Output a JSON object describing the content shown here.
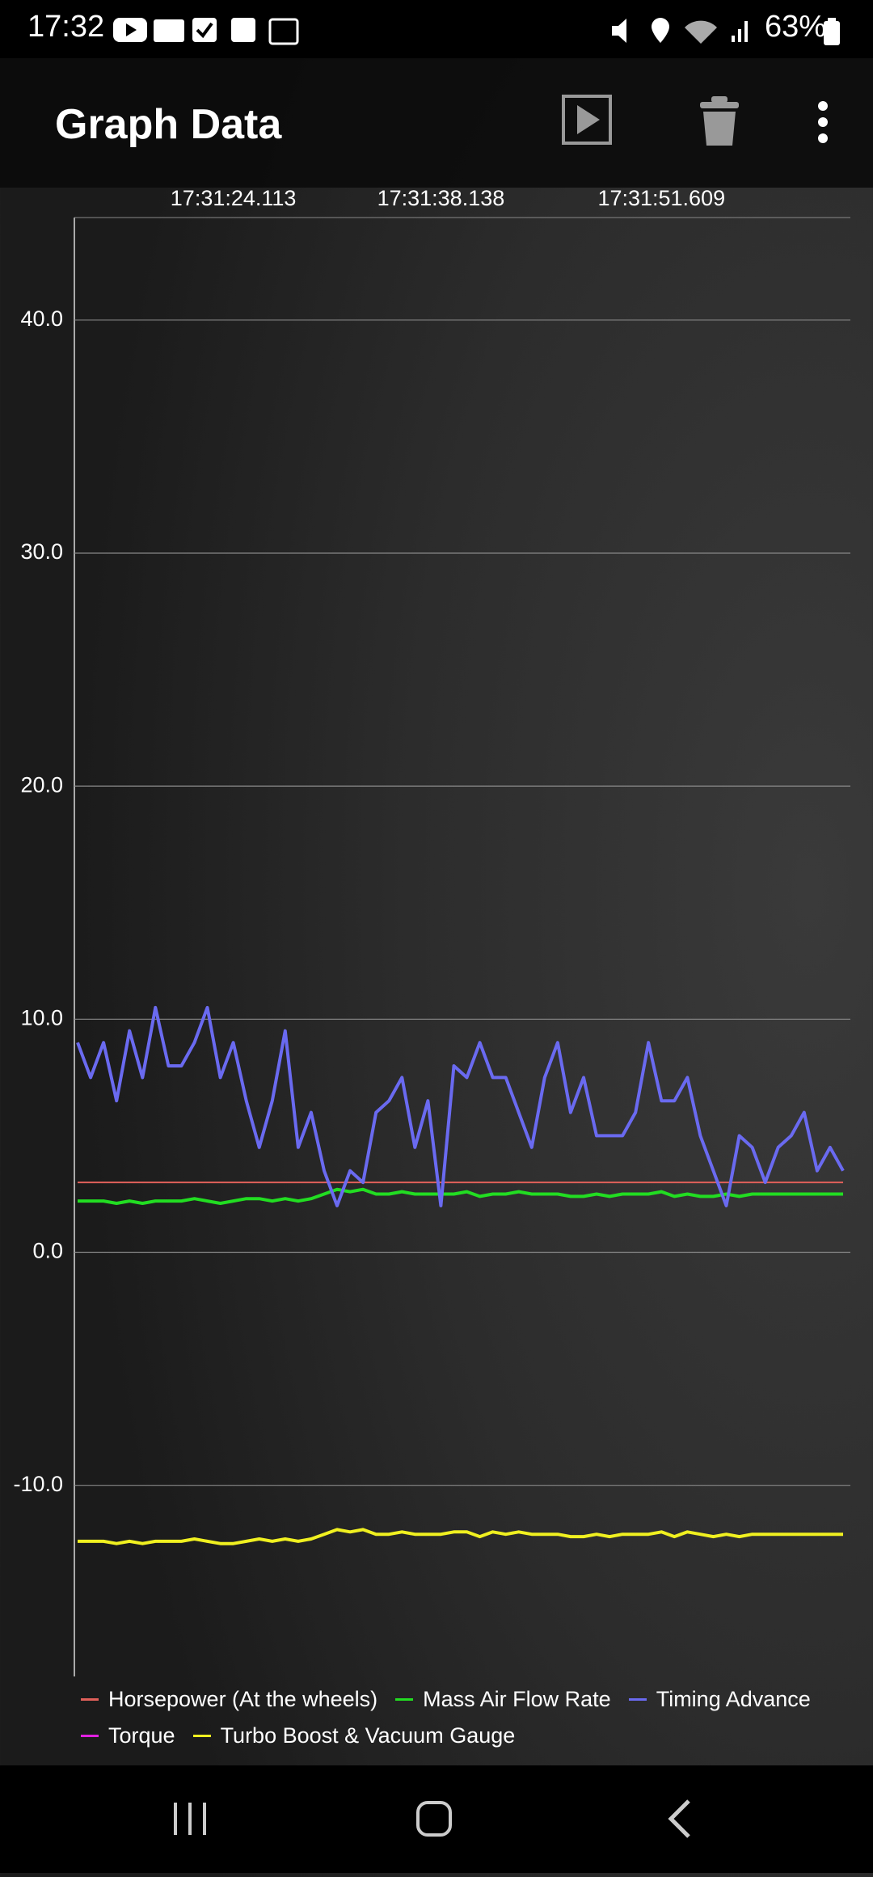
{
  "status_bar": {
    "time": "17:32",
    "battery": "63%"
  },
  "app_bar": {
    "title": "Graph Data"
  },
  "chart_data": {
    "type": "line",
    "categories": [
      null,
      null,
      null,
      null,
      null,
      null,
      null,
      null,
      null,
      null,
      null,
      null,
      "17:31:24.113",
      null,
      null,
      null,
      null,
      null,
      null,
      null,
      null,
      null,
      null,
      null,
      null,
      null,
      null,
      null,
      "17:31:38.138",
      null,
      null,
      null,
      null,
      null,
      null,
      null,
      null,
      null,
      null,
      null,
      null,
      null,
      null,
      null,
      null,
      "17:31:51.609",
      null,
      null,
      null,
      null,
      null,
      null,
      null,
      null,
      null,
      null,
      null,
      null,
      null,
      null
    ],
    "ylim": [
      -18.2,
      44.4
    ],
    "yticks": [
      {
        "value": -10,
        "label": "-10.0"
      },
      {
        "value": 0,
        "label": "0.0"
      },
      {
        "value": 10,
        "label": "10.0"
      },
      {
        "value": 20,
        "label": "20.0"
      },
      {
        "value": 30,
        "label": "30.0"
      },
      {
        "value": 40,
        "label": "40.0"
      }
    ],
    "grid": true,
    "legend": "bottom",
    "series": [
      {
        "name": "Horsepower (At the wheels)",
        "color": "#e0605a",
        "values": [
          3,
          3,
          3,
          3,
          3,
          3,
          3,
          3,
          3,
          3,
          3,
          3,
          3,
          3,
          3,
          3,
          3,
          3,
          3,
          3,
          3,
          3,
          3,
          3,
          3,
          3,
          3,
          3,
          3,
          3,
          3,
          3,
          3,
          3,
          3,
          3,
          3,
          3,
          3,
          3,
          3,
          3,
          3,
          3,
          3,
          3,
          3,
          3,
          3,
          3,
          3,
          3,
          3,
          3,
          3,
          3,
          3,
          3,
          3,
          3
        ]
      },
      {
        "name": "Mass Air Flow Rate",
        "color": "#22dd22",
        "values": [
          2.2,
          2.2,
          2.2,
          2.1,
          2.2,
          2.1,
          2.2,
          2.2,
          2.2,
          2.3,
          2.2,
          2.1,
          2.2,
          2.3,
          2.3,
          2.2,
          2.3,
          2.2,
          2.3,
          2.5,
          2.7,
          2.6,
          2.7,
          2.5,
          2.5,
          2.6,
          2.5,
          2.5,
          2.5,
          2.5,
          2.6,
          2.4,
          2.5,
          2.5,
          2.6,
          2.5,
          2.5,
          2.5,
          2.4,
          2.4,
          2.5,
          2.4,
          2.5,
          2.5,
          2.5,
          2.6,
          2.4,
          2.5,
          2.4,
          2.4,
          2.5,
          2.4,
          2.5,
          2.5,
          2.5,
          2.5,
          2.5,
          2.5,
          2.5,
          2.5
        ]
      },
      {
        "name": "Timing Advance",
        "color": "#6a6af0",
        "values": [
          9,
          7.5,
          9,
          6.5,
          9.5,
          7.5,
          10.5,
          8,
          8,
          9,
          10.5,
          7.5,
          9,
          6.5,
          4.5,
          6.5,
          9.5,
          4.5,
          6,
          3.5,
          2,
          3.5,
          3,
          6,
          6.5,
          7.5,
          4.5,
          6.5,
          2,
          8,
          7.5,
          9,
          7.5,
          7.5,
          6,
          4.5,
          7.5,
          9,
          6,
          7.5,
          5,
          5,
          5,
          6,
          9,
          6.5,
          6.5,
          7.5,
          5,
          3.5,
          2,
          5,
          4.5,
          3,
          4.5,
          5,
          6,
          3.5,
          4.5,
          3.5
        ]
      },
      {
        "name": "Torque",
        "color": "#e020e0"
      },
      {
        "name": "Turbo Boost & Vacuum Gauge",
        "color": "#f0f020",
        "values": [
          -12.4,
          -12.4,
          -12.4,
          -12.5,
          -12.4,
          -12.5,
          -12.4,
          -12.4,
          -12.4,
          -12.3,
          -12.4,
          -12.5,
          -12.5,
          -12.4,
          -12.3,
          -12.4,
          -12.3,
          -12.4,
          -12.3,
          -12.1,
          -11.9,
          -12.0,
          -11.9,
          -12.1,
          -12.1,
          -12.0,
          -12.1,
          -12.1,
          -12.1,
          -12.0,
          -12.0,
          -12.2,
          -12.0,
          -12.1,
          -12.0,
          -12.1,
          -12.1,
          -12.1,
          -12.2,
          -12.2,
          -12.1,
          -12.2,
          -12.1,
          -12.1,
          -12.1,
          -12.0,
          -12.2,
          -12.0,
          -12.1,
          -12.2,
          -12.1,
          -12.2,
          -12.1,
          -12.1,
          -12.1,
          -12.1,
          -12.1,
          -12.1,
          -12.1,
          -12.1
        ]
      }
    ]
  }
}
